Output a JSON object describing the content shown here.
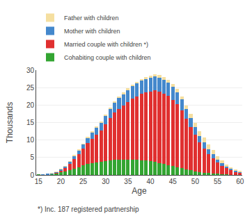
{
  "chart_data": {
    "type": "bar",
    "stacked": true,
    "xlabel": "Age",
    "ylabel": "Thousands",
    "x": [
      15,
      16,
      17,
      18,
      19,
      20,
      21,
      22,
      23,
      24,
      25,
      26,
      27,
      28,
      29,
      30,
      31,
      32,
      33,
      34,
      35,
      36,
      37,
      38,
      39,
      40,
      41,
      42,
      43,
      44,
      45,
      46,
      47,
      48,
      49,
      50,
      51,
      52,
      53,
      54,
      55,
      56,
      57,
      58,
      59,
      60
    ],
    "series": [
      {
        "name": "Cohabiting couple with children",
        "color": "#33a532",
        "values": [
          0.02,
          0.05,
          0.1,
          0.2,
          0.4,
          0.7,
          1.0,
          1.4,
          1.8,
          2.2,
          2.7,
          3.1,
          3.4,
          3.6,
          3.8,
          4.0,
          4.2,
          4.3,
          4.4,
          4.4,
          4.4,
          4.4,
          4.3,
          4.2,
          4.1,
          3.9,
          3.7,
          3.4,
          3.1,
          2.8,
          2.5,
          2.2,
          1.9,
          1.6,
          1.3,
          1.0,
          0.8,
          0.6,
          0.5,
          0.4,
          0.3,
          0.2,
          0.15,
          0.1,
          0.07,
          0.05
        ]
      },
      {
        "name": "Married couple with children *)",
        "color": "#e03030",
        "values": [
          0.0,
          0.02,
          0.05,
          0.1,
          0.3,
          0.6,
          1.0,
          1.8,
          2.8,
          3.8,
          4.8,
          6.0,
          7.0,
          8.0,
          9.0,
          10.5,
          12.0,
          13.5,
          14.5,
          15.5,
          16.5,
          17.5,
          18.2,
          19.0,
          19.5,
          20.0,
          20.5,
          20.5,
          20.2,
          19.8,
          19.0,
          18.0,
          16.5,
          14.5,
          12.5,
          10.5,
          8.5,
          7.0,
          5.5,
          4.3,
          3.2,
          2.4,
          1.8,
          1.3,
          0.9,
          0.6
        ]
      },
      {
        "name": "Mother with children",
        "color": "#4488cc",
        "values": [
          0.0,
          0.02,
          0.05,
          0.1,
          0.2,
          0.3,
          0.5,
          0.7,
          0.9,
          1.1,
          1.3,
          1.5,
          1.8,
          2.0,
          2.2,
          2.5,
          2.8,
          3.0,
          3.2,
          3.3,
          3.5,
          3.6,
          3.7,
          3.8,
          3.9,
          3.9,
          4.0,
          4.0,
          4.0,
          3.9,
          3.8,
          3.5,
          3.2,
          2.8,
          2.5,
          2.2,
          1.9,
          1.7,
          1.4,
          1.2,
          0.9,
          0.7,
          0.5,
          0.4,
          0.3,
          0.2
        ]
      },
      {
        "name": "Father with children",
        "color": "#f5dfa0",
        "values": [
          0.0,
          0.0,
          0.0,
          0.02,
          0.03,
          0.04,
          0.05,
          0.07,
          0.08,
          0.1,
          0.12,
          0.15,
          0.18,
          0.2,
          0.22,
          0.25,
          0.28,
          0.3,
          0.32,
          0.35,
          0.38,
          0.4,
          0.42,
          0.45,
          0.5,
          0.55,
          0.6,
          0.65,
          0.7,
          0.75,
          0.8,
          0.85,
          0.9,
          1.0,
          1.1,
          1.2,
          1.3,
          1.4,
          1.3,
          1.2,
          1.0,
          0.8,
          0.6,
          0.4,
          0.3,
          0.2
        ]
      }
    ],
    "xlim": [
      14.5,
      60.5
    ],
    "xticks": [
      15,
      20,
      25,
      30,
      35,
      40,
      45,
      50,
      55,
      60
    ],
    "ylim": [
      0,
      30
    ],
    "yticks": [
      0,
      5,
      10,
      15,
      20,
      25,
      30
    ],
    "grid": true,
    "legend": "upper left",
    "annotations": [
      "*) Inc. 187 registered partnership"
    ]
  }
}
